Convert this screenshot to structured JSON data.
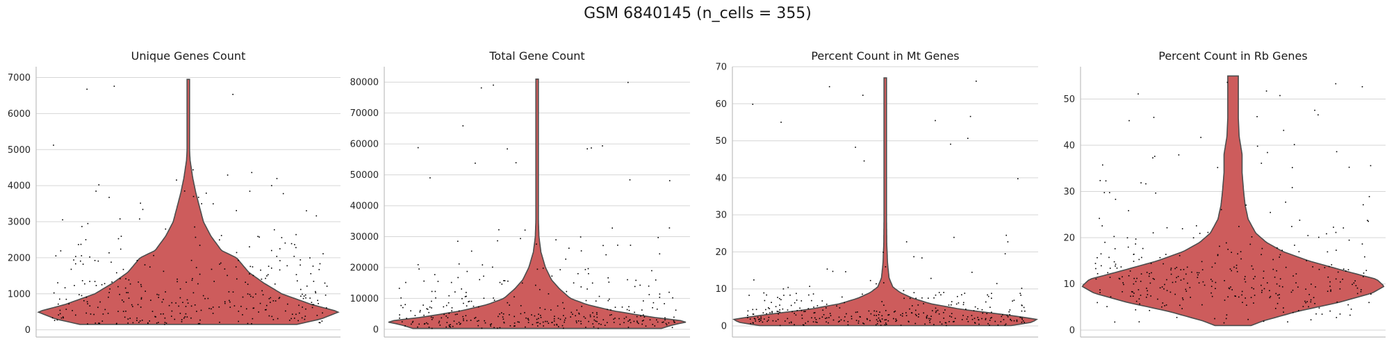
{
  "chart_data": {
    "suptitle": "GSM 6840145 (n_cells = 355)",
    "panels": [
      {
        "type": "violin",
        "title": "Unique Genes Count",
        "ylim": [
          -200,
          7300
        ],
        "yticks": [
          0,
          1000,
          2000,
          3000,
          4000,
          5000,
          6000,
          7000
        ],
        "ytick_labels": [
          "0",
          "1000",
          "2000",
          "3000",
          "4000",
          "5000",
          "6000",
          "7000"
        ],
        "data_min": 150,
        "data_max": 6950,
        "density_profile": [
          [
            150,
            0.72
          ],
          [
            300,
            0.88
          ],
          [
            500,
            1.0
          ],
          [
            700,
            0.82
          ],
          [
            1000,
            0.62
          ],
          [
            1300,
            0.5
          ],
          [
            1600,
            0.4
          ],
          [
            2000,
            0.32
          ],
          [
            2200,
            0.22
          ],
          [
            2600,
            0.15
          ],
          [
            3000,
            0.1
          ],
          [
            3400,
            0.075
          ],
          [
            3800,
            0.05
          ],
          [
            4200,
            0.03
          ],
          [
            4700,
            0.012
          ],
          [
            5000,
            0.008
          ],
          [
            5500,
            0.006
          ],
          [
            6950,
            0.006
          ]
        ],
        "n_points": 355,
        "grid": true
      },
      {
        "type": "violin",
        "title": "Total Gene Count",
        "ylim": [
          -2500,
          85000
        ],
        "yticks": [
          0,
          10000,
          20000,
          30000,
          40000,
          50000,
          60000,
          70000,
          80000
        ],
        "ytick_labels": [
          "0",
          "10000",
          "20000",
          "30000",
          "40000",
          "50000",
          "60000",
          "70000",
          "80000"
        ],
        "data_min": 300,
        "data_max": 81000,
        "density_profile": [
          [
            300,
            0.82
          ],
          [
            1500,
            0.9
          ],
          [
            2500,
            1.0
          ],
          [
            4000,
            0.75
          ],
          [
            6000,
            0.5
          ],
          [
            8000,
            0.33
          ],
          [
            10000,
            0.22
          ],
          [
            13000,
            0.15
          ],
          [
            16000,
            0.095
          ],
          [
            20000,
            0.055
          ],
          [
            25000,
            0.025
          ],
          [
            30000,
            0.012
          ],
          [
            36000,
            0.008
          ],
          [
            45000,
            0.006
          ],
          [
            60000,
            0.006
          ],
          [
            81000,
            0.006
          ]
        ],
        "n_points": 355,
        "grid": true
      },
      {
        "type": "violin",
        "title": "Percent Count in Mt Genes",
        "ylim": [
          -3,
          70
        ],
        "yticks": [
          0,
          10,
          20,
          30,
          40,
          50,
          60,
          70
        ],
        "ytick_labels": [
          "0",
          "10",
          "20",
          "30",
          "40",
          "50",
          "60",
          "70"
        ],
        "data_min": 0.1,
        "data_max": 67,
        "density_profile": [
          [
            0.1,
            0.83
          ],
          [
            1,
            0.97
          ],
          [
            1.8,
            1.0
          ],
          [
            3,
            0.8
          ],
          [
            4.5,
            0.5
          ],
          [
            6,
            0.3
          ],
          [
            7.5,
            0.18
          ],
          [
            9,
            0.1
          ],
          [
            10.5,
            0.05
          ],
          [
            13,
            0.025
          ],
          [
            17,
            0.015
          ],
          [
            22,
            0.01
          ],
          [
            30,
            0.008
          ],
          [
            40,
            0.006
          ],
          [
            50,
            0.006
          ],
          [
            67,
            0.006
          ]
        ],
        "n_points": 355,
        "grid": true
      },
      {
        "type": "violin",
        "title": "Percent Count in Rb Genes",
        "ylim": [
          -1.5,
          57
        ],
        "yticks": [
          0,
          10,
          20,
          30,
          40,
          50
        ],
        "ytick_labels": [
          "0",
          "10",
          "20",
          "30",
          "40",
          "50"
        ],
        "data_min": 1,
        "data_max": 55,
        "density_profile": [
          [
            1,
            0.12
          ],
          [
            2,
            0.2
          ],
          [
            4,
            0.42
          ],
          [
            6,
            0.7
          ],
          [
            8,
            0.92
          ],
          [
            9.5,
            1.0
          ],
          [
            11,
            0.95
          ],
          [
            13,
            0.72
          ],
          [
            15,
            0.5
          ],
          [
            17,
            0.33
          ],
          [
            19,
            0.22
          ],
          [
            21,
            0.15
          ],
          [
            24,
            0.1
          ],
          [
            27,
            0.08
          ],
          [
            30,
            0.07
          ],
          [
            34,
            0.06
          ],
          [
            38,
            0.06
          ],
          [
            42,
            0.04
          ],
          [
            46,
            0.035
          ],
          [
            50,
            0.035
          ],
          [
            55,
            0.035
          ]
        ],
        "n_points": 355,
        "grid": true
      }
    ]
  },
  "colors": {
    "violin_fill": "#cd5c5c",
    "violin_edge": "#4d4d4d",
    "points": "#000000",
    "grid": "#d6d6d6",
    "axis": "#bfbfbf",
    "text": "#1a1a1a"
  }
}
